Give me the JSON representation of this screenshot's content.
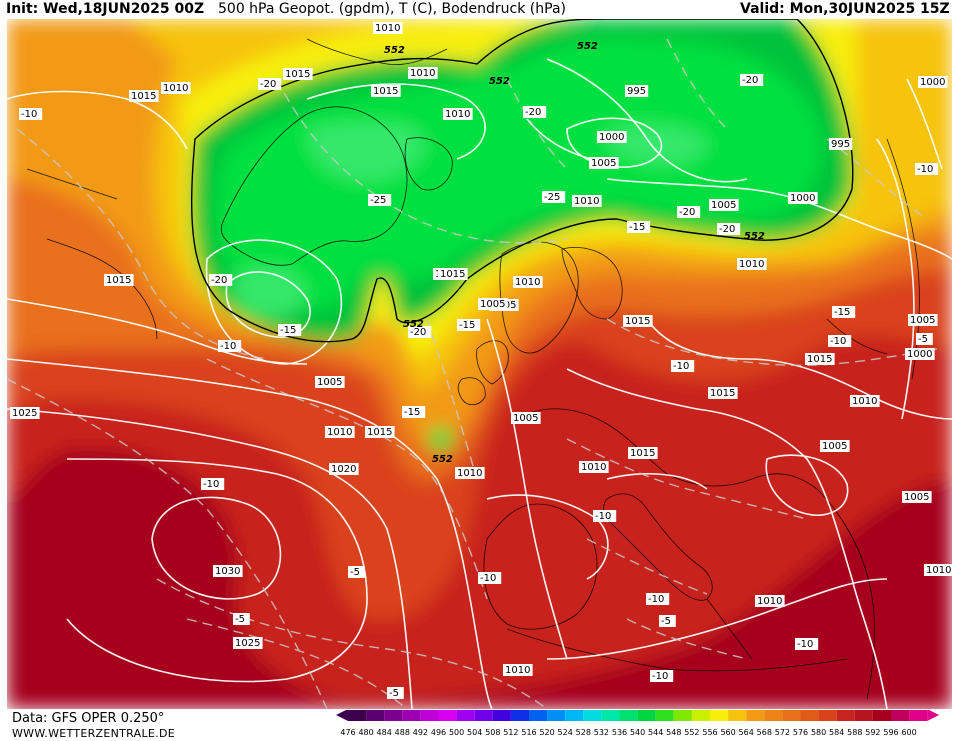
{
  "header": {
    "init": "Init: Wed,18JUN2025 00Z",
    "title": "500 hPa Geopot. (gpdm), T (C), Bodendruck (hPa)",
    "valid": "Valid: Mon,30JUN2025 15Z"
  },
  "footer": {
    "source": "Data: GFS OPER 0.250°",
    "site": "WWW.WETTERZENTRALE.DE"
  },
  "colors": {
    "deep_red": "#a6001d",
    "red": "#c8241f",
    "red_orange": "#d9431a",
    "orange": "#e9701a",
    "light_orange": "#f29a14",
    "yellow_orange": "#f6c30c",
    "yellow": "#f7ee0c",
    "green_dark": "#00c23a",
    "green": "#00e040",
    "green_light": "#36e86a"
  },
  "legend": {
    "ticks": [
      "476",
      "480",
      "484",
      "488",
      "492",
      "496",
      "500",
      "504",
      "508",
      "512",
      "516",
      "520",
      "524",
      "528",
      "532",
      "536",
      "540",
      "544",
      "548",
      "552",
      "556",
      "560",
      "564",
      "568",
      "572",
      "576",
      "580",
      "584",
      "588",
      "592",
      "596",
      "600"
    ],
    "colors": [
      "#3d004c",
      "#5a0070",
      "#7c0090",
      "#9c00b0",
      "#bf00d6",
      "#d800f0",
      "#a000f0",
      "#7000e8",
      "#4000e0",
      "#1030e8",
      "#0060f0",
      "#0090f4",
      "#00b8f4",
      "#00dce0",
      "#00e8a8",
      "#00e070",
      "#00d640",
      "#30e020",
      "#80e800",
      "#c8f000",
      "#f7ee0c",
      "#f6c30c",
      "#f29a14",
      "#ee8418",
      "#e9701a",
      "#e05a1a",
      "#d9431a",
      "#c8241f",
      "#b81420",
      "#a6001d",
      "#c0005a",
      "#e0008a"
    ]
  },
  "labels": {
    "pressure": [
      "1010",
      "1015",
      "1015",
      "1010",
      "1015",
      "1010",
      "1010",
      "995",
      "1000",
      "1005",
      "1010",
      "995",
      "1000",
      "1000",
      "1010",
      "1005",
      "1005",
      "1010",
      "1015",
      "1005",
      "1015",
      "1010",
      "1015",
      "1005",
      "1000",
      "1015",
      "1025",
      "1005",
      "1010",
      "1015",
      "1005",
      "1015",
      "1010",
      "1020",
      "1010",
      "1015",
      "1010",
      "1005",
      "1005",
      "1030",
      "1010",
      "1025",
      "1010",
      "1010"
    ],
    "temperature": [
      "-10",
      "-20",
      "-20",
      "-20",
      "-20",
      "-25",
      "-25",
      "-20",
      "-20",
      "-15",
      "-15",
      "-15",
      "-20",
      "-10",
      "-10",
      "-10",
      "-15",
      "-15",
      "-10",
      "-10",
      "-5",
      "-10",
      "-5",
      "-10",
      "-5",
      "-10",
      "-10",
      "-5",
      "-10",
      "-5"
    ],
    "geopotential": [
      "552",
      "552",
      "552",
      "552",
      "552",
      "552"
    ]
  }
}
